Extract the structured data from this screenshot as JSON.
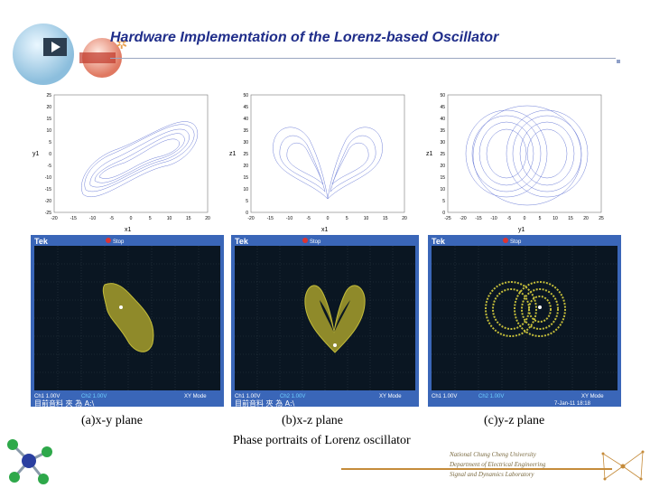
{
  "title": "Hardware Implementation of the Lorenz-based Oscillator",
  "plots": [
    {
      "ylabel": "y1",
      "xlabel": "x1",
      "yticks": [
        "25",
        "20",
        "15",
        "10",
        "5",
        "0",
        "-5",
        "-10",
        "-15",
        "-20",
        "-25"
      ],
      "xticks": [
        "-20",
        "-15",
        "-10",
        "-5",
        "0",
        "5",
        "10",
        "15",
        "20"
      ]
    },
    {
      "ylabel": "z1",
      "xlabel": "x1",
      "yticks": [
        "50",
        "45",
        "40",
        "35",
        "30",
        "25",
        "20",
        "15",
        "10",
        "5",
        "0"
      ],
      "xticks": [
        "-20",
        "-15",
        "-10",
        "-5",
        "0",
        "5",
        "10",
        "15",
        "20"
      ]
    },
    {
      "ylabel": "z1",
      "xlabel": "y1",
      "yticks": [
        "50",
        "45",
        "40",
        "35",
        "30",
        "25",
        "20",
        "15",
        "10",
        "5",
        "0"
      ],
      "xticks": [
        "-25",
        "-20",
        "-15",
        "-10",
        "-5",
        "0",
        "5",
        "10",
        "15",
        "20",
        "25"
      ]
    }
  ],
  "scopes": [
    {
      "brand": "Tek",
      "trig": "Stop",
      "ch1": "Ch1  1.00V",
      "ch2": "Ch2  1.00V",
      "mode": "XY Mode",
      "footer": "目前音料 夾 為  A:\\"
    },
    {
      "brand": "Tek",
      "trig": "Stop",
      "ch1": "Ch1  1.00V",
      "ch2": "Ch2  1.00V",
      "mode": "XY Mode",
      "footer": "目前音料 夾 為  A:\\"
    },
    {
      "brand": "Tek",
      "trig": "Stop",
      "ch1": "Ch1  1.00V",
      "ch2": "Ch2  1.00V",
      "mode": "XY Mode",
      "footer": "7-Jan-11 18:18"
    }
  ],
  "captions": [
    "(a)x-y plane",
    "(b)x-z plane",
    "(c)y-z plane"
  ],
  "subcaption": "Phase portraits of Lorenz oscillator",
  "university": {
    "line1": "National Chung Cheng University",
    "line2": "Department of Electrical Engineering",
    "line3": "Signal and Dynamics Laboratory"
  },
  "colors": {
    "trace": "#6f7fd8",
    "scope_bg": "#0a1622",
    "scope_frame": "#3a66b8",
    "scope_trace": "#b8b23a"
  }
}
